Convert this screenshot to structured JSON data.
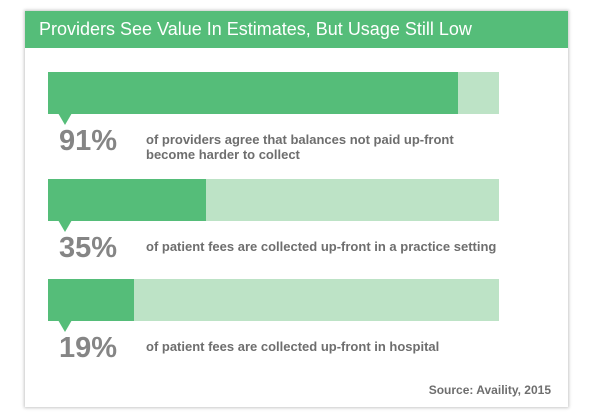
{
  "colors": {
    "accent": "#55bd79",
    "track": "#bde3c6",
    "text": "#6e6e6e",
    "percent": "#858585"
  },
  "header": {
    "title": "Providers See Value In Estimates, But Usage Still Low"
  },
  "chart_data": {
    "type": "bar",
    "title": "Providers See Value In Estimates, But Usage Still Low",
    "ylim": [
      0,
      100
    ],
    "items": [
      {
        "value": 91,
        "percent_label": "91%",
        "description": "of providers agree that balances not paid up-front become harder to collect"
      },
      {
        "value": 35,
        "percent_label": "35%",
        "description": "of patient fees are collected up-front in a practice setting"
      },
      {
        "value": 19,
        "percent_label": "19%",
        "description": "of patient fees are collected up-front in hospital"
      }
    ],
    "source": "Source: Availity, 2015"
  }
}
